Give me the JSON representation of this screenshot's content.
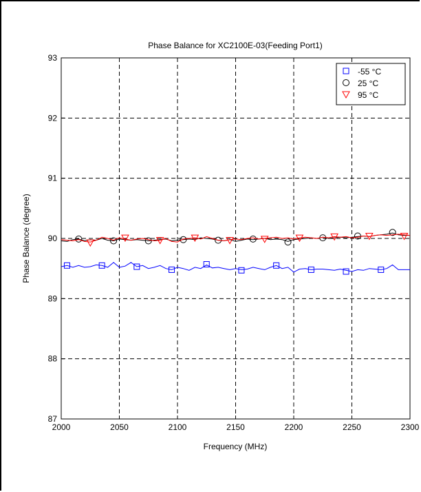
{
  "chart_data": {
    "type": "line",
    "title": "Phase Balance for XC2100E-03(Feeding Port1)",
    "xlabel": "Frequency (MHz)",
    "ylabel": "Phase Balance (degree)",
    "xlim": [
      2000,
      2300
    ],
    "ylim": [
      87,
      93
    ],
    "xticks": [
      2000,
      2050,
      2100,
      2150,
      2200,
      2250,
      2300
    ],
    "yticks": [
      87,
      88,
      89,
      90,
      91,
      92,
      93
    ],
    "grid": true,
    "grid_style": "dashed",
    "legend_position": "top-right",
    "series": [
      {
        "name": "-55 °C",
        "color": "#0000ff",
        "marker": "square",
        "x": [
          2000,
          2005,
          2010,
          2015,
          2020,
          2025,
          2030,
          2035,
          2040,
          2045,
          2050,
          2055,
          2060,
          2065,
          2070,
          2075,
          2080,
          2085,
          2090,
          2095,
          2100,
          2105,
          2110,
          2115,
          2120,
          2125,
          2130,
          2135,
          2140,
          2145,
          2150,
          2155,
          2160,
          2165,
          2170,
          2175,
          2180,
          2185,
          2190,
          2195,
          2200,
          2205,
          2210,
          2215,
          2220,
          2225,
          2230,
          2235,
          2240,
          2245,
          2250,
          2255,
          2260,
          2265,
          2270,
          2275,
          2280,
          2285,
          2290,
          2295,
          2300
        ],
        "y": [
          89.53,
          89.55,
          89.52,
          89.55,
          89.52,
          89.53,
          89.56,
          89.55,
          89.52,
          89.6,
          89.52,
          89.54,
          89.6,
          89.53,
          89.55,
          89.5,
          89.52,
          89.55,
          89.5,
          89.48,
          89.52,
          89.5,
          89.47,
          89.52,
          89.5,
          89.56,
          89.51,
          89.52,
          89.5,
          89.48,
          89.5,
          89.48,
          89.49,
          89.52,
          89.5,
          89.48,
          89.52,
          89.55,
          89.5,
          89.52,
          89.44,
          89.49,
          89.5,
          89.48,
          89.49,
          89.49,
          89.48,
          89.47,
          89.49,
          89.47,
          89.45,
          89.48,
          89.47,
          89.5,
          89.49,
          89.48,
          89.5,
          89.56,
          89.48,
          89.48,
          89.48
        ],
        "marker_x": [
          2005,
          2035,
          2065,
          2095,
          2125,
          2155,
          2185,
          2215,
          2245,
          2275
        ],
        "marker_y": [
          89.55,
          89.55,
          89.53,
          89.48,
          89.57,
          89.47,
          89.55,
          89.48,
          89.45,
          89.48
        ]
      },
      {
        "name": "25 °C",
        "color": "#000000",
        "marker": "circle",
        "x": [
          2000,
          2005,
          2010,
          2015,
          2020,
          2025,
          2030,
          2035,
          2040,
          2045,
          2050,
          2055,
          2060,
          2065,
          2070,
          2075,
          2080,
          2085,
          2090,
          2095,
          2100,
          2105,
          2110,
          2115,
          2120,
          2125,
          2130,
          2135,
          2140,
          2145,
          2150,
          2155,
          2160,
          2165,
          2170,
          2175,
          2180,
          2185,
          2190,
          2195,
          2200,
          2205,
          2210,
          2215,
          2220,
          2225,
          2230,
          2235,
          2240,
          2245,
          2250,
          2255,
          2260,
          2265,
          2270,
          2275,
          2280,
          2285,
          2290,
          2295,
          2300
        ],
        "y": [
          89.96,
          89.95,
          89.98,
          89.99,
          89.96,
          89.98,
          89.97,
          90,
          89.97,
          89.96,
          89.99,
          89.98,
          89.97,
          89.98,
          89.97,
          89.96,
          89.97,
          89.98,
          89.99,
          89.96,
          89.97,
          89.98,
          89.99,
          89.98,
          90.01,
          90.0,
          89.99,
          89.97,
          89.96,
          89.98,
          89.95,
          89.97,
          89.99,
          89.98,
          89.99,
          90.0,
          89.98,
          89.99,
          89.98,
          89.95,
          89.98,
          89.99,
          90.0,
          90.01,
          90.0,
          90.02,
          90.0,
          90.01,
          90.02,
          90.01,
          90.02,
          90.03,
          90.04,
          90.03,
          90.05,
          90.06,
          90.07,
          90.09,
          90.06,
          90.05,
          90.05
        ],
        "marker_x": [
          2015,
          2045,
          2075,
          2105,
          2135,
          2165,
          2195,
          2225,
          2255,
          2285
        ],
        "marker_y": [
          89.99,
          89.96,
          89.96,
          89.98,
          89.97,
          89.99,
          89.94,
          90.01,
          90.04,
          90.1
        ]
      },
      {
        "name": "95 °C",
        "color": "#ff0000",
        "marker": "triangle-down",
        "x": [
          2000,
          2005,
          2010,
          2015,
          2020,
          2025,
          2030,
          2035,
          2040,
          2045,
          2050,
          2055,
          2060,
          2065,
          2070,
          2075,
          2080,
          2085,
          2090,
          2095,
          2100,
          2105,
          2110,
          2115,
          2120,
          2125,
          2130,
          2135,
          2140,
          2145,
          2150,
          2155,
          2160,
          2165,
          2170,
          2175,
          2180,
          2185,
          2190,
          2195,
          2200,
          2205,
          2210,
          2215,
          2220,
          2225,
          2230,
          2235,
          2240,
          2245,
          2250,
          2255,
          2260,
          2265,
          2270,
          2275,
          2280,
          2285,
          2290,
          2295,
          2300
        ],
        "y": [
          89.98,
          89.97,
          89.96,
          89.98,
          89.95,
          89.94,
          89.97,
          90.02,
          90.0,
          89.97,
          90.01,
          89.99,
          89.97,
          89.99,
          90.0,
          89.98,
          89.96,
          89.97,
          90.0,
          89.95,
          89.94,
          89.99,
          90.0,
          90.01,
          89.99,
          90.03,
          90.0,
          89.97,
          89.96,
          89.98,
          89.99,
          89.98,
          90.0,
          90.01,
          89.99,
          90.0,
          90.01,
          90.02,
          90.0,
          90.01,
          89.99,
          90.01,
          90.02,
          90.01,
          90.0,
          90.02,
          90.01,
          90.03,
          90.02,
          90.03,
          90.01,
          90.02,
          90.04,
          90.03,
          90.05,
          90.06,
          90.05,
          90.06,
          90.07,
          90.06,
          90.05
        ],
        "marker_x": [
          2025,
          2055,
          2085,
          2115,
          2145,
          2175,
          2205,
          2235,
          2265,
          2295
        ],
        "marker_y": [
          89.93,
          90.01,
          89.97,
          90.01,
          89.97,
          89.99,
          90.01,
          90.03,
          90.04,
          90.04
        ]
      }
    ]
  }
}
